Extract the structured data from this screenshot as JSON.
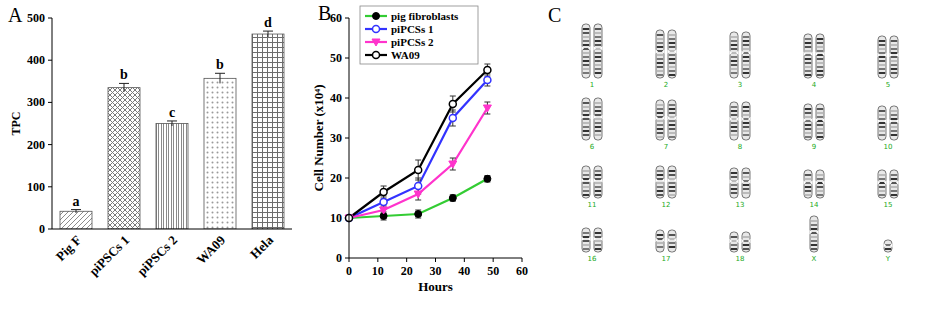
{
  "chart_data": [
    {
      "type": "bar",
      "title": "A",
      "y_label": "TPC",
      "categories": [
        "Pig F",
        "piPSCs 1",
        "piPSCs 2",
        "WA09",
        "Hela"
      ],
      "values": [
        42,
        335,
        250,
        357,
        462
      ],
      "errors": [
        4,
        10,
        6,
        12,
        7
      ],
      "annotations": [
        "a",
        "b",
        "c",
        "b",
        "d"
      ],
      "colors": [
        "#8c8c8c",
        "#7a7a7a",
        "#8a8a8a",
        "#9a9a9a",
        "#6e6e6e"
      ],
      "ylim": [
        0,
        500
      ],
      "yticks": [
        0,
        100,
        200,
        300,
        400,
        500
      ]
    },
    {
      "type": "line",
      "title": "B",
      "x_label": "Hours",
      "y_label": "Cell Number (x10⁴)",
      "x": [
        0,
        12,
        24,
        36,
        48
      ],
      "series": [
        {
          "name": "pig fibroblasts",
          "color": "#33cc33",
          "marker": "circle",
          "values": [
            10,
            10.5,
            11,
            15,
            19.8
          ],
          "errors": [
            0.5,
            1,
            1,
            0.8,
            0.8
          ]
        },
        {
          "name": "piPCSs 1",
          "color": "#3333ff",
          "marker": "circle-open",
          "values": [
            10,
            14,
            18,
            35,
            44.5
          ],
          "errors": [
            0.5,
            1.5,
            2,
            2,
            1.5
          ]
        },
        {
          "name": "piPCSs 2",
          "color": "#ff33cc",
          "marker": "triangle-down",
          "values": [
            10,
            12,
            16,
            23.5,
            37.5
          ],
          "errors": [
            0.5,
            1,
            1.5,
            1.5,
            1.5
          ]
        },
        {
          "name": "WA09",
          "color": "#000000",
          "marker": "circle-open",
          "values": [
            10,
            16.5,
            22,
            38.5,
            47
          ],
          "errors": [
            0.5,
            1.5,
            2.5,
            2,
            1.5
          ]
        }
      ],
      "xlim": [
        0,
        60
      ],
      "xticks": [
        0,
        10,
        20,
        30,
        40,
        50,
        60
      ],
      "ylim": [
        0,
        60
      ],
      "yticks": [
        0,
        10,
        20,
        30,
        40,
        50,
        60
      ],
      "legend": "upper left"
    }
  ],
  "karyotype": {
    "title": "C",
    "labels": [
      "1",
      "2",
      "3",
      "4",
      "5",
      "6",
      "7",
      "8",
      "9",
      "10",
      "11",
      "12",
      "13",
      "14",
      "15",
      "16",
      "17",
      "18",
      "X",
      "Y"
    ]
  }
}
